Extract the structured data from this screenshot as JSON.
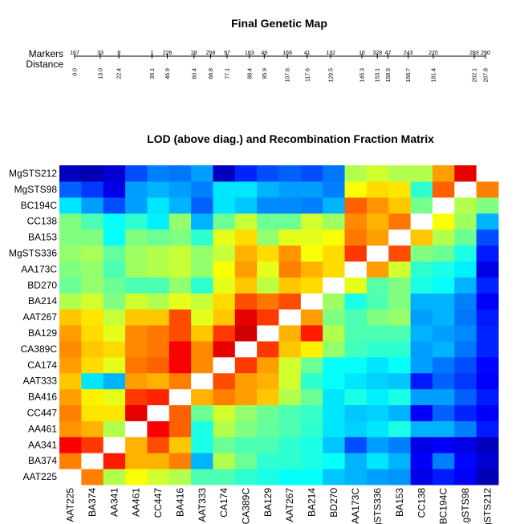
{
  "chart_data": [
    {
      "type": "line",
      "title": "Final Genetic Map",
      "row_labels": [
        "Markers",
        "Distance"
      ],
      "markers": [
        "167",
        "33",
        "8",
        "1",
        "226",
        "28",
        "258",
        "97",
        "163",
        "49",
        "169",
        "41",
        "132",
        "16",
        "328",
        "47",
        "243",
        "220",
        "283",
        "290"
      ],
      "distances": [
        0.0,
        13.0,
        22.4,
        39.1,
        46.9,
        60.4,
        68.8,
        77.1,
        88.4,
        95.9,
        107.6,
        117.6,
        129.5,
        145.3,
        153.1,
        158.5,
        168.7,
        181.4,
        202.1,
        207.8
      ],
      "distance_labels": [
        "0.0",
        "13.0",
        "22.4",
        "39.1",
        "46.9",
        "60.4",
        "68.8",
        "77.1",
        "88.4",
        "95.9",
        "107.6",
        "117.6",
        "129.5",
        "145.3",
        "153.1",
        "158.5",
        "168.7",
        "181.4",
        "202.1",
        "207.8"
      ]
    },
    {
      "type": "heatmap",
      "title": "LOD (above diag.) and Recombination Fraction Matrix",
      "labels": [
        "AAT225",
        "BA374",
        "AA341",
        "AA461",
        "CC447",
        "BA416",
        "AAT333",
        "CA174",
        "CA389C",
        "BA129",
        "AAT267",
        "BA214",
        "BD270",
        "AA173C",
        "MgSTS336",
        "BA153",
        "CC138",
        "BC194C",
        "MgSTS98",
        "MgSTS212"
      ],
      "x_tick_labels": [
        "AAT225",
        "BA374",
        "AA341",
        "AA461",
        "CC447",
        "BA416",
        "AAT333",
        "CA174",
        "CA389C",
        "BA129",
        "AAT267",
        "BA214",
        "BD270",
        "AA173C",
        "gSTS336",
        "BA153",
        "CC138",
        "BC194C",
        "1gSTS98",
        "gSTS212"
      ],
      "y_tick_labels": [
        "AAT225",
        "BA374",
        "AA341",
        "AA461",
        "CC447",
        "BA416",
        "AAT333",
        "CA174",
        "CA389C",
        "BA129",
        "AAT267",
        "BA214",
        "BD270",
        "AA173C",
        "MgSTS336",
        "BA153",
        "CC138",
        "BC194C",
        "MgSTS98",
        "MgSTS212"
      ],
      "colorscale": [
        "#000080",
        "#0000ff",
        "#0080ff",
        "#00ffff",
        "#80ff80",
        "#ffff00",
        "#ff8000",
        "#ff0000",
        "#800000"
      ],
      "diagonal_color": "#ffffff",
      "values": [
        [
          0,
          0.75,
          0.55,
          0.62,
          0.58,
          0.55,
          0.45,
          0.45,
          0.42,
          0.4,
          0.38,
          0.38,
          0.32,
          0.3,
          0.28,
          0.27,
          0.1,
          0.15,
          0.12,
          0.05
        ],
        [
          0.75,
          0,
          0.85,
          0.7,
          0.7,
          0.75,
          0.3,
          0.55,
          0.48,
          0.42,
          0.42,
          0.4,
          0.38,
          0.3,
          0.35,
          0.3,
          0.12,
          0.25,
          0.13,
          0.08
        ],
        [
          0.88,
          0.82,
          0,
          0.7,
          0.8,
          0.68,
          0.4,
          0.48,
          0.45,
          0.45,
          0.42,
          0.4,
          0.32,
          0.2,
          0.28,
          0.25,
          0.1,
          0.12,
          0.1,
          0.06
        ],
        [
          0.73,
          0.7,
          0.55,
          0,
          0.88,
          0.78,
          0.4,
          0.55,
          0.5,
          0.47,
          0.45,
          0.42,
          0.35,
          0.33,
          0.35,
          0.4,
          0.3,
          0.3,
          0.25,
          0.15
        ],
        [
          0.75,
          0.65,
          0.65,
          0.9,
          0,
          0.78,
          0.48,
          0.58,
          0.52,
          0.48,
          0.45,
          0.43,
          0.35,
          0.32,
          0.33,
          0.3,
          0.12,
          0.22,
          0.16,
          0.12
        ],
        [
          0.72,
          0.64,
          0.6,
          0.82,
          0.84,
          0,
          0.7,
          0.75,
          0.72,
          0.68,
          0.55,
          0.48,
          0.35,
          0.4,
          0.36,
          0.4,
          0.28,
          0.28,
          0.22,
          0.15
        ],
        [
          0.68,
          0.35,
          0.3,
          0.72,
          0.7,
          0.75,
          0,
          0.8,
          0.72,
          0.7,
          0.58,
          0.42,
          0.38,
          0.35,
          0.33,
          0.32,
          0.15,
          0.22,
          0.18,
          0.12
        ],
        [
          0.72,
          0.66,
          0.6,
          0.76,
          0.78,
          0.88,
          0.74,
          0,
          0.82,
          0.72,
          0.58,
          0.48,
          0.38,
          0.38,
          0.35,
          0.38,
          0.28,
          0.24,
          0.2,
          0.13
        ],
        [
          0.74,
          0.68,
          0.66,
          0.74,
          0.76,
          0.88,
          0.74,
          0.9,
          0,
          0.82,
          0.68,
          0.64,
          0.52,
          0.44,
          0.42,
          0.42,
          0.28,
          0.3,
          0.24,
          0.16
        ],
        [
          0.72,
          0.66,
          0.6,
          0.74,
          0.76,
          0.8,
          0.68,
          0.82,
          0.92,
          0,
          0.7,
          0.85,
          0.55,
          0.45,
          0.45,
          0.45,
          0.3,
          0.28,
          0.26,
          0.16
        ],
        [
          0.68,
          0.65,
          0.57,
          0.68,
          0.68,
          0.8,
          0.6,
          0.68,
          0.9,
          0.82,
          0,
          0.72,
          0.5,
          0.45,
          0.5,
          0.52,
          0.28,
          0.3,
          0.24,
          0.15
        ],
        [
          0.55,
          0.58,
          0.5,
          0.58,
          0.55,
          0.6,
          0.57,
          0.66,
          0.8,
          0.76,
          0.8,
          0,
          0.53,
          0.4,
          0.45,
          0.5,
          0.3,
          0.3,
          0.25,
          0.12
        ],
        [
          0.48,
          0.52,
          0.48,
          0.45,
          0.45,
          0.52,
          0.42,
          0.6,
          0.68,
          0.56,
          0.68,
          0.66,
          0,
          0.6,
          0.46,
          0.5,
          0.4,
          0.38,
          0.3,
          0.16
        ],
        [
          0.5,
          0.52,
          0.45,
          0.53,
          0.55,
          0.57,
          0.52,
          0.62,
          0.72,
          0.6,
          0.75,
          0.7,
          0.66,
          0,
          0.72,
          0.58,
          0.42,
          0.4,
          0.36,
          0.1
        ],
        [
          0.52,
          0.54,
          0.47,
          0.53,
          0.55,
          0.57,
          0.52,
          0.57,
          0.7,
          0.66,
          0.73,
          0.62,
          0.66,
          0.82,
          0,
          0.8,
          0.5,
          0.48,
          0.4,
          0.15
        ],
        [
          0.5,
          0.5,
          0.38,
          0.5,
          0.48,
          0.5,
          0.42,
          0.6,
          0.66,
          0.52,
          0.6,
          0.6,
          0.62,
          0.76,
          0.72,
          0,
          0.68,
          0.55,
          0.48,
          0.2
        ],
        [
          0.5,
          0.45,
          0.38,
          0.42,
          0.36,
          0.52,
          0.3,
          0.48,
          0.57,
          0.48,
          0.48,
          0.58,
          0.53,
          0.74,
          0.7,
          0.76,
          0,
          0.62,
          0.53,
          0.3
        ],
        [
          0.35,
          0.28,
          0.2,
          0.28,
          0.35,
          0.3,
          0.22,
          0.35,
          0.32,
          0.26,
          0.26,
          0.25,
          0.3,
          0.78,
          0.73,
          0.68,
          0.49,
          0,
          0.55,
          0.5
        ],
        [
          0.22,
          0.18,
          0.1,
          0.28,
          0.3,
          0.28,
          0.25,
          0.35,
          0.35,
          0.3,
          0.28,
          0.28,
          0.25,
          0.62,
          0.66,
          0.65,
          0.42,
          0.78,
          0,
          0.75
        ],
        [
          0.06,
          0.05,
          0.08,
          0.2,
          0.25,
          0.24,
          0.28,
          0.06,
          0.16,
          0.2,
          0.22,
          0.2,
          0.24,
          0.55,
          0.58,
          0.55,
          0.55,
          0.72,
          0.9,
          0
        ]
      ]
    }
  ]
}
